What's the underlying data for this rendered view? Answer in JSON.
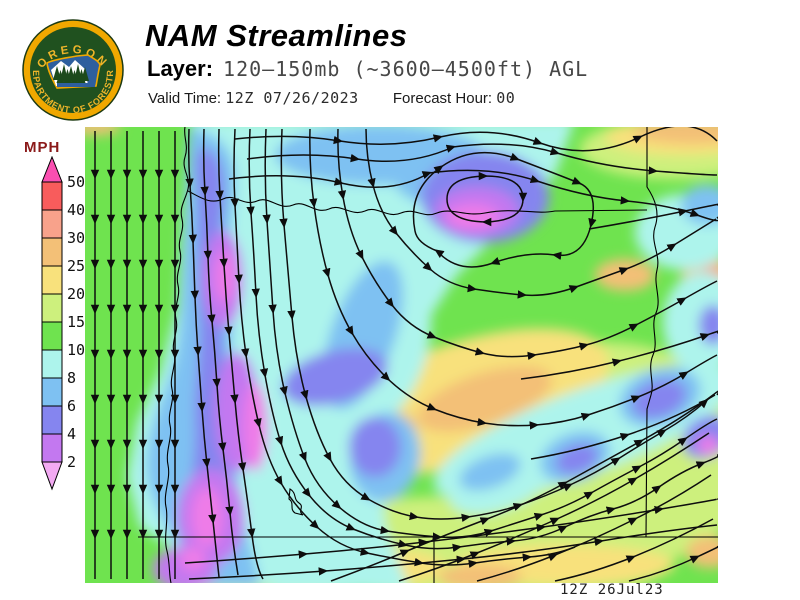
{
  "header": {
    "logo": {
      "top_text": "OREGON",
      "bottom_text": "DEPARTMENT OF FORESTRY"
    },
    "title": "NAM Streamlines",
    "layer_label": "Layer:",
    "layer_value": "120–150mb (~3600–4500ft) AGL",
    "valid_time_label": "Valid Time:",
    "valid_time_value": "12Z 07/26/2023",
    "forecast_hour_label": "Forecast Hour:",
    "forecast_hour_value": "00"
  },
  "legend": {
    "title": "MPH",
    "tip_top_color": "#fa4fb1",
    "tip_bottom_color": "#f2aaf2",
    "segment_colors": [
      "#f85c5c",
      "#f8a28b",
      "#f3c077",
      "#f8e17c",
      "#cdf07d",
      "#6fe34f",
      "#adf4ec",
      "#7ec1f2",
      "#8585ef",
      "#c378f0"
    ],
    "boundary_labels": [
      "50",
      "40",
      "30",
      "25",
      "20",
      "15",
      "10",
      "8",
      "6",
      "4",
      "2"
    ]
  },
  "map": {
    "timestamp": "12Z 26Jul23",
    "palette": {
      "green": "#6fe34f",
      "yellowgreen": "#cdf07d",
      "yellow": "#f8e17c",
      "orange": "#f3c077",
      "salmon": "#f8a28b",
      "cyan": "#adf4ec",
      "lightblue": "#7ec1f2",
      "periwinkle": "#8585ef",
      "orchid": "#c378f0",
      "violet": "#ee7ce8"
    }
  },
  "chart_data": {
    "type": "heatmap",
    "title": "NAM Streamlines",
    "subtitle": "120–150mb (~3600–4500ft) AGL",
    "valid_time": "12Z 07/26/2023",
    "forecast_hour": "00",
    "timestamp": "12Z 26Jul23",
    "units": "MPH",
    "legend_position": "left",
    "scale_boundaries_mph": [
      50,
      40,
      30,
      25,
      20,
      15,
      10,
      8,
      6,
      4,
      2
    ],
    "scale_colors_top_to_bottom": [
      "#fa4fb1",
      "#f85c5c",
      "#f8a28b",
      "#f3c077",
      "#f8e17c",
      "#cdf07d",
      "#6fe34f",
      "#adf4ec",
      "#7ec1f2",
      "#8585ef",
      "#c378f0",
      "#f2aaf2"
    ]
  }
}
